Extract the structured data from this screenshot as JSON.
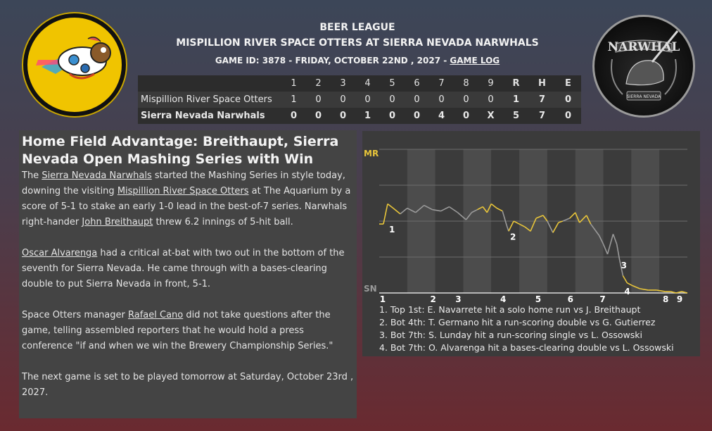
{
  "header": {
    "league": "BEER LEAGUE",
    "matchup": "MISPILLION RIVER SPACE OTTERS AT SIERRA NEVADA NARWHALS",
    "game_info": "GAME ID: 3878 - FRIDAY, OCTOBER 22ND , 2027 - ",
    "game_log_link": "GAME LOG"
  },
  "logos": {
    "home_text": "NARWHAL",
    "home_sub": "SIERRA NEVADA"
  },
  "linescore": {
    "innings": [
      "1",
      "2",
      "3",
      "4",
      "5",
      "6",
      "7",
      "8",
      "9"
    ],
    "totals_labels": [
      "R",
      "H",
      "E"
    ],
    "away": {
      "team": "Mispillion River Space Otters",
      "innings": [
        "1",
        "0",
        "0",
        "0",
        "0",
        "0",
        "0",
        "0",
        "0"
      ],
      "totals": [
        "1",
        "7",
        "0"
      ]
    },
    "home": {
      "team": "Sierra Nevada Narwhals",
      "innings": [
        "0",
        "0",
        "0",
        "1",
        "0",
        "0",
        "4",
        "0",
        "X"
      ],
      "totals": [
        "5",
        "7",
        "0"
      ]
    }
  },
  "article": {
    "headline": "Home Field Advantage: Breithaupt, Sierra Nevada Open Mashing Series with Win",
    "p1": {
      "t1": "The ",
      "l1": "Sierra Nevada Narwhals",
      "t2": " started the Mashing Series in style today, downing the visiting ",
      "l2": "Mispillion River Space Otters",
      "t3": " at The Aquarium by a score of 5-1 to stake an early 1-0 lead in the best-of-7 series. Narwhals right-hander ",
      "l3": "John Breithaupt",
      "t4": " threw 6.2 innings of 5-hit ball."
    },
    "p2": {
      "l1": "Oscar Alvarenga",
      "t1": " had a critical at-bat with two out in the bottom of the seventh for Sierra Nevada. He came through with a bases-clearing double to put Sierra Nevada in front, 5-1."
    },
    "p3": {
      "t1": "Space Otters manager ",
      "l1": "Rafael Cano",
      "t2": " did not take questions after the game, telling assembled reporters that he would hold a press conference \"if and when we win the Brewery Championship Series.\""
    },
    "p4": "The next game is set to be played tomorrow at Saturday, October 23rd , 2027."
  },
  "chart_data": {
    "type": "line",
    "y_top_label": "MR",
    "y_bottom_label": "SN",
    "x_labels": [
      "1",
      "2",
      "3",
      "4",
      "5",
      "6",
      "7",
      "8",
      "9"
    ],
    "ylim": [
      0,
      1
    ],
    "colors": {
      "away": "#e8c53a",
      "home": "#9a9a9a"
    },
    "points": [
      [
        0.0,
        0.48
      ],
      [
        0.15,
        0.48
      ],
      [
        0.3,
        0.62
      ],
      [
        0.5,
        0.59
      ],
      [
        0.75,
        0.55
      ],
      [
        1.0,
        0.59
      ],
      [
        1.3,
        0.56
      ],
      [
        1.6,
        0.61
      ],
      [
        1.9,
        0.58
      ],
      [
        2.2,
        0.57
      ],
      [
        2.5,
        0.6
      ],
      [
        2.8,
        0.56
      ],
      [
        3.1,
        0.51
      ],
      [
        3.3,
        0.56
      ],
      [
        3.5,
        0.58
      ],
      [
        3.7,
        0.6
      ],
      [
        3.85,
        0.56
      ],
      [
        4.0,
        0.62
      ],
      [
        4.2,
        0.59
      ],
      [
        4.4,
        0.57
      ],
      [
        4.55,
        0.47
      ],
      [
        4.62,
        0.43
      ],
      [
        4.8,
        0.5
      ],
      [
        5.0,
        0.48
      ],
      [
        5.2,
        0.46
      ],
      [
        5.4,
        0.43
      ],
      [
        5.6,
        0.52
      ],
      [
        5.85,
        0.54
      ],
      [
        6.0,
        0.5
      ],
      [
        6.2,
        0.42
      ],
      [
        6.4,
        0.49
      ],
      [
        6.55,
        0.5
      ],
      [
        6.8,
        0.52
      ],
      [
        7.0,
        0.56
      ],
      [
        7.15,
        0.49
      ],
      [
        7.4,
        0.54
      ],
      [
        7.55,
        0.48
      ],
      [
        7.7,
        0.44
      ],
      [
        7.85,
        0.4
      ],
      [
        8.0,
        0.34
      ],
      [
        8.15,
        0.27
      ],
      [
        8.35,
        0.41
      ],
      [
        8.48,
        0.34
      ],
      [
        8.58,
        0.23
      ],
      [
        8.7,
        0.12
      ],
      [
        8.85,
        0.07
      ],
      [
        9.05,
        0.05
      ],
      [
        9.3,
        0.03
      ],
      [
        9.6,
        0.02
      ],
      [
        9.9,
        0.02
      ],
      [
        10.2,
        0.01
      ],
      [
        10.4,
        0.01
      ],
      [
        10.6,
        0.0
      ],
      [
        10.8,
        0.01
      ],
      [
        11.0,
        0.0
      ]
    ],
    "event_markers": [
      {
        "label": "1",
        "x": 0.3,
        "y": 0.48
      },
      {
        "label": "2",
        "x": 4.62,
        "y": 0.43
      },
      {
        "label": "3",
        "x": 8.58,
        "y": 0.23
      },
      {
        "label": "4",
        "x": 8.7,
        "y": 0.05
      }
    ],
    "events": [
      "1. Top 1st: E. Navarrete hit a solo home run vs J. Breithaupt",
      "2. Bot 4th: T. Germano hit a run-scoring double vs G. Gutierrez",
      "3. Bot 7th: S. Lunday hit a run-scoring single vs L. Ossowski",
      "4. Bot 7th: O. Alvarenga hit a bases-clearing double vs L. Ossowski"
    ]
  }
}
